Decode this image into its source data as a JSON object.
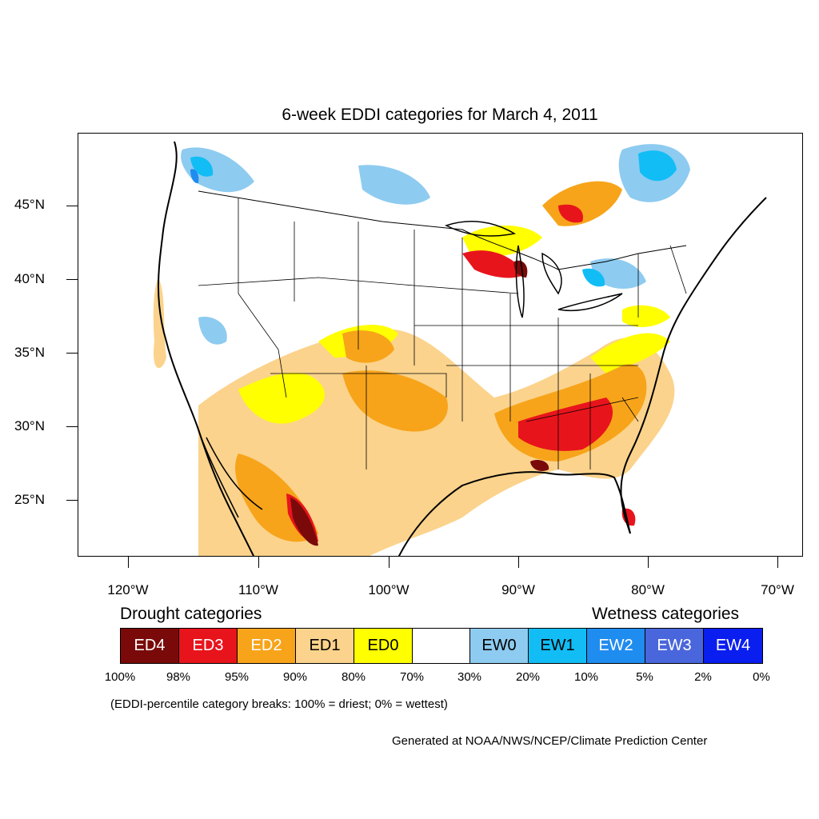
{
  "title": "6-week EDDI categories for March 4, 2011",
  "axes": {
    "lat_labels": [
      "45°N",
      "40°N",
      "35°N",
      "30°N",
      "25°N"
    ],
    "lon_labels": [
      "120°W",
      "110°W",
      "100°W",
      "90°W",
      "80°W",
      "70°W"
    ]
  },
  "legend": {
    "drought_title": "Drought categories",
    "wetness_title": "Wetness categories",
    "categories": [
      {
        "label": "ED4",
        "color": "#7a0a0a",
        "text_color": "#ffffff"
      },
      {
        "label": "ED3",
        "color": "#e8141c",
        "text_color": "#ffffff"
      },
      {
        "label": "ED2",
        "color": "#f7a41a",
        "text_color": "#ffffff"
      },
      {
        "label": "ED1",
        "color": "#fbd38c",
        "text_color": "#000000"
      },
      {
        "label": "ED0",
        "color": "#ffff00",
        "text_color": "#000000"
      },
      {
        "label": "",
        "color": "#ffffff",
        "text_color": "#000000"
      },
      {
        "label": "EW0",
        "color": "#8ecbf0",
        "text_color": "#000000"
      },
      {
        "label": "EW1",
        "color": "#12bdf5",
        "text_color": "#000000"
      },
      {
        "label": "EW2",
        "color": "#1f8cf0",
        "text_color": "#ffffff"
      },
      {
        "label": "EW3",
        "color": "#4a66dc",
        "text_color": "#ffffff"
      },
      {
        "label": "EW4",
        "color": "#0a1ef0",
        "text_color": "#ffffff"
      }
    ],
    "percent_labels": [
      "100%",
      "98%",
      "95%",
      "90%",
      "80%",
      "70%",
      "30%",
      "20%",
      "10%",
      "5%",
      "2%",
      "0%"
    ]
  },
  "note": "(EDDI-percentile category breaks: 100% = driest; 0% = wettest)",
  "credit": "Generated at NOAA/NWS/NCEP/Climate Prediction Center"
}
